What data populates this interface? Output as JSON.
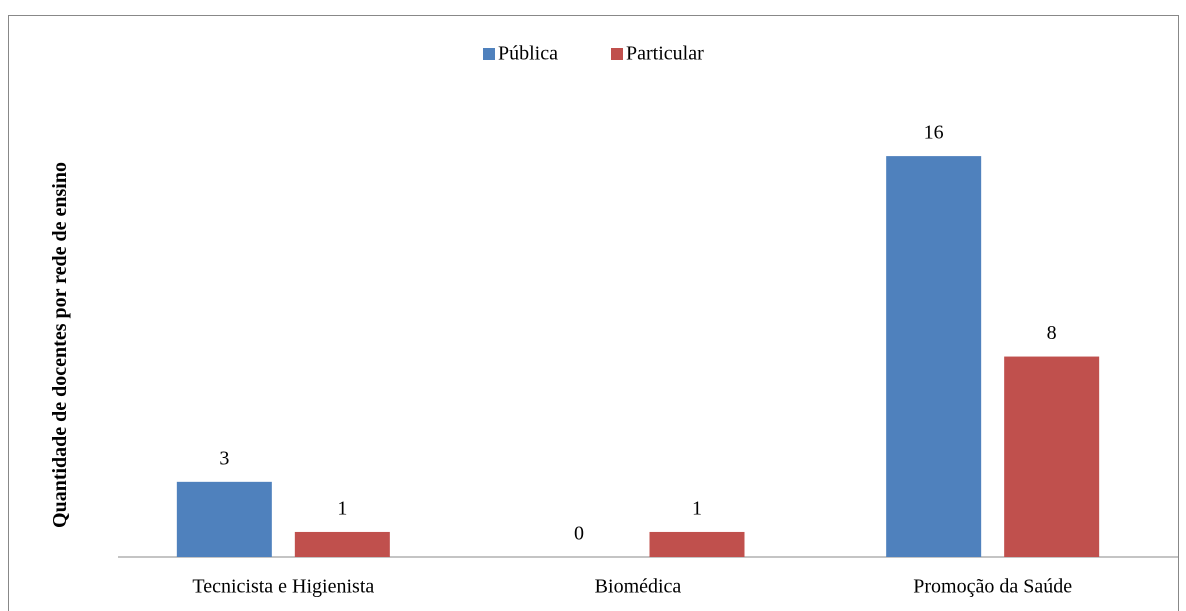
{
  "chart_data": {
    "type": "bar",
    "y_label": "Quantidade de docentes por rede de ensino",
    "categories": [
      "Tecnicista e Higienista",
      "Biomédica",
      "Promoção da Saúde"
    ],
    "series": [
      {
        "name": "Pública",
        "color": "#4f81bd",
        "values": [
          3,
          0,
          16
        ]
      },
      {
        "name": "Particular",
        "color": "#c0504d",
        "values": [
          1,
          1,
          8
        ]
      }
    ],
    "ylim": [
      0,
      18
    ],
    "legend": "top"
  }
}
